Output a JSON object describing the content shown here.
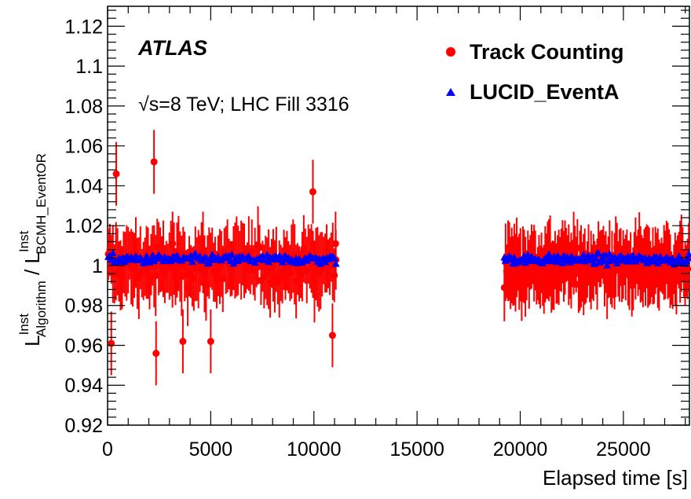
{
  "chart_data": {
    "type": "scatter",
    "title": "",
    "xlabel": "Elapsed time [s]",
    "ylabel": {
      "main_left": "L",
      "sup_left": "Inst",
      "sub_left": "Algorithm",
      "divider": " / ",
      "main_right": "L",
      "sup_right": "Inst",
      "sub_right": "BCMH_EventOR"
    },
    "xlim": [
      0,
      28200
    ],
    "ylim": [
      0.92,
      1.13
    ],
    "xticks": [
      {
        "value": 0,
        "label": "0"
      },
      {
        "value": 5000,
        "label": "5000"
      },
      {
        "value": 10000,
        "label": "10000"
      },
      {
        "value": 15000,
        "label": "15000"
      },
      {
        "value": 20000,
        "label": "20000"
      },
      {
        "value": 25000,
        "label": "25000"
      }
    ],
    "yticks": [
      {
        "value": 0.92,
        "label": "0.92"
      },
      {
        "value": 0.94,
        "label": "0.94"
      },
      {
        "value": 0.96,
        "label": "0.96"
      },
      {
        "value": 0.98,
        "label": "0.98"
      },
      {
        "value": 1.0,
        "label": "1"
      },
      {
        "value": 1.02,
        "label": "1.02"
      },
      {
        "value": 1.04,
        "label": "1.04"
      },
      {
        "value": 1.06,
        "label": "1.06"
      },
      {
        "value": 1.08,
        "label": "1.08"
      },
      {
        "value": 1.1,
        "label": "1.1"
      },
      {
        "value": 1.12,
        "label": "1.12"
      }
    ],
    "annotations": {
      "experiment": "ATLAS",
      "energy_prefix": "√s=8 TeV; LHC Fill 3316"
    },
    "legend": {
      "placement": "top-right"
    },
    "series": [
      {
        "name": "Track Counting",
        "color": "#ff0000",
        "marker": "circle",
        "segments": [
          [
            0,
            11100
          ],
          [
            19200,
            28200
          ]
        ],
        "n_points": [
          150,
          150
        ],
        "mean": 1.0,
        "spread": 0.018,
        "error": 0.016,
        "highlights": [
          {
            "x": 180,
            "y": 0.961
          },
          {
            "x": 420,
            "y": 1.046
          },
          {
            "x": 2250,
            "y": 1.052
          },
          {
            "x": 2350,
            "y": 0.956
          },
          {
            "x": 3150,
            "y": 1.011
          },
          {
            "x": 3650,
            "y": 0.962
          },
          {
            "x": 5000,
            "y": 0.962
          },
          {
            "x": 9950,
            "y": 1.037
          },
          {
            "x": 10900,
            "y": 0.965
          },
          {
            "x": 11050,
            "y": 1.011
          }
        ]
      },
      {
        "name": "LUCID_EventA",
        "color": "#0000ff",
        "marker": "triangle",
        "segments": [
          [
            0,
            11100
          ],
          [
            19200,
            28200
          ]
        ],
        "n_points": [
          150,
          150
        ],
        "mean": 1.003,
        "spread": 0.003,
        "error": 0.0
      }
    ]
  },
  "colors": {
    "track": "#ff0000",
    "lucid": "#0000ff",
    "axis": "#000000",
    "background": "#ffffff"
  }
}
